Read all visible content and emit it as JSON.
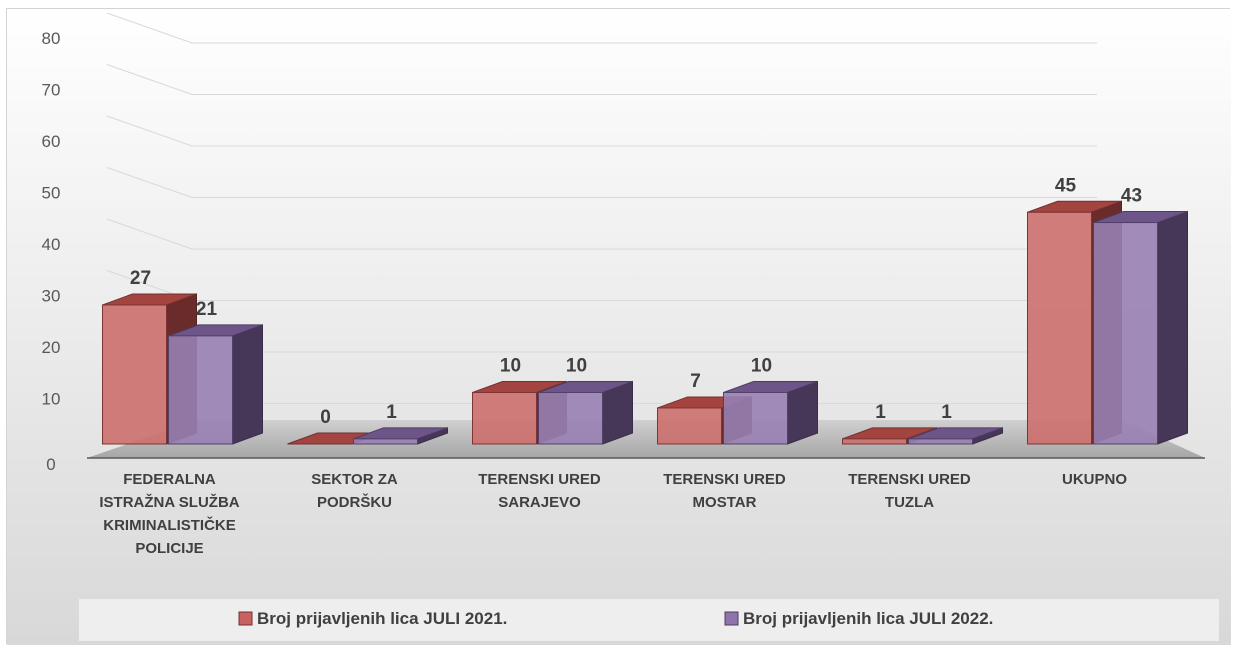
{
  "chart_data": {
    "type": "bar",
    "style": "3d-clustered-column",
    "categories": [
      [
        "FEDERALNA",
        "ISTRAŽNA SLUŽBA",
        "KRIMINALISTIČKE",
        "POLICIJE"
      ],
      [
        "SEKTOR ZA",
        "PODRŠKU"
      ],
      [
        "TERENSKI URED",
        "SARAJEVO"
      ],
      [
        "TERENSKI URED",
        "MOSTAR"
      ],
      [
        "TERENSKI URED",
        "TUZLA"
      ],
      [
        "UKUPNO"
      ]
    ],
    "series": [
      {
        "name": "Broj prijavljenih lica JULI 2021.",
        "values": [
          27,
          0,
          10,
          7,
          1,
          45
        ],
        "color": "#c0504d"
      },
      {
        "name": "Broj prijavljenih lica JULI  2022.",
        "values": [
          21,
          1,
          10,
          10,
          1,
          43
        ],
        "color": "#8064a2"
      }
    ],
    "yticks": [
      "0",
      "10",
      "20",
      "30",
      "40",
      "50",
      "60",
      "70",
      "80"
    ],
    "ylim": [
      0,
      80
    ],
    "grid": true,
    "legend": "bottom"
  }
}
